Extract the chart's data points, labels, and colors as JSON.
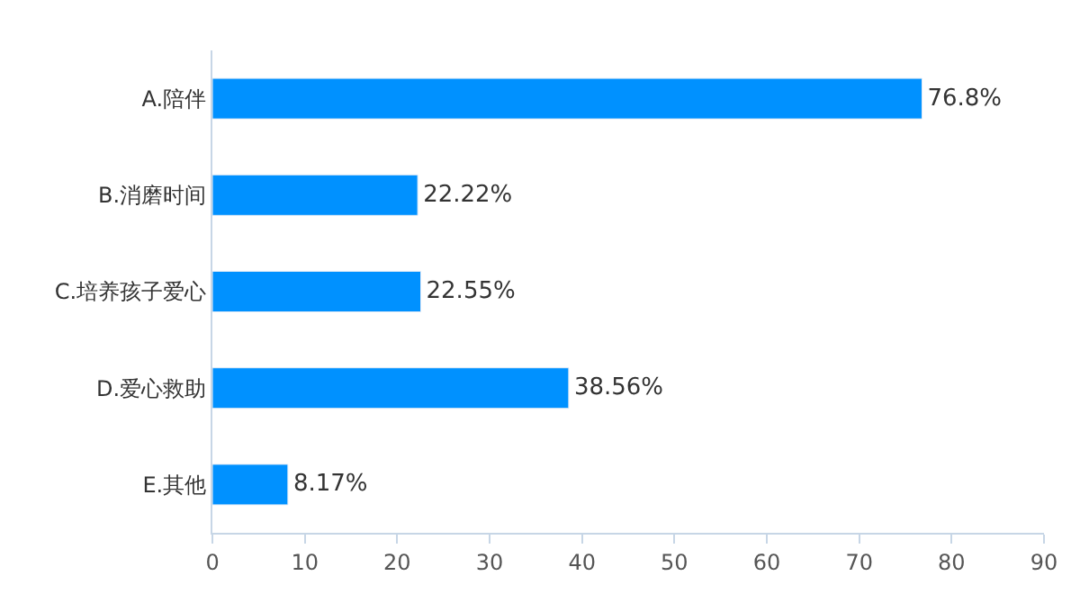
{
  "chart_data": {
    "type": "bar",
    "orientation": "horizontal",
    "categories": [
      "A.陪伴",
      "B.消磨时间",
      "C.培养孩子爱心",
      "D.爱心救助",
      "E.其他"
    ],
    "values": [
      76.8,
      22.22,
      22.55,
      38.56,
      8.17
    ],
    "value_labels": [
      "76.8%",
      "22.22%",
      "22.55%",
      "38.56%",
      "8.17%"
    ],
    "color": "#0091ff",
    "xlim": [
      0,
      90
    ],
    "xticks": [
      0,
      10,
      20,
      30,
      40,
      50,
      60,
      70,
      80,
      90
    ]
  }
}
